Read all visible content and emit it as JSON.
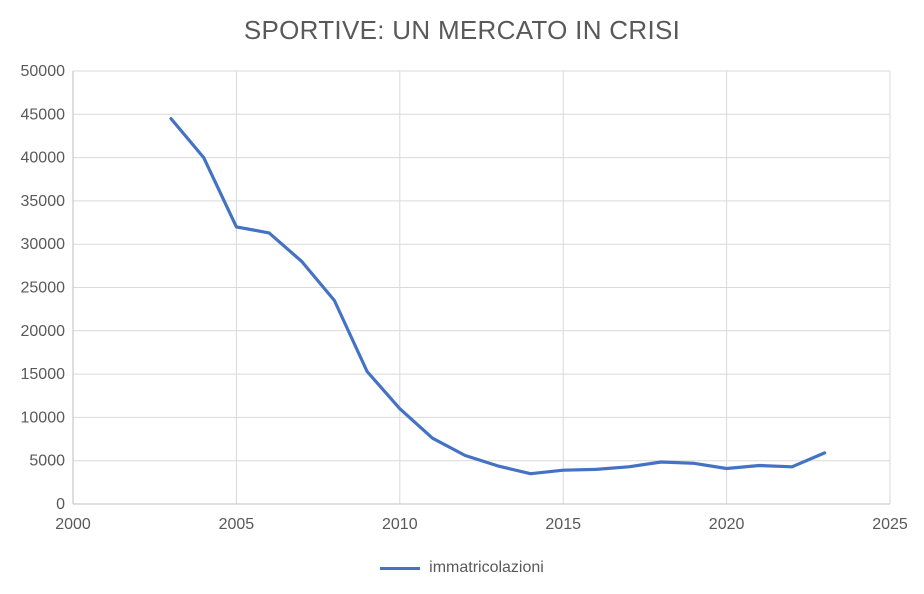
{
  "chart_data": {
    "type": "line",
    "title": "SPORTIVE: UN MERCATO IN CRISI",
    "xlim": [
      2000,
      2025
    ],
    "ylim": [
      0,
      50000
    ],
    "x_ticks": [
      2000,
      2005,
      2010,
      2015,
      2020,
      2025
    ],
    "y_ticks": [
      0,
      5000,
      10000,
      15000,
      20000,
      25000,
      30000,
      35000,
      40000,
      45000,
      50000
    ],
    "grid": true,
    "legend_position": "bottom",
    "series": [
      {
        "name": "immatricolazioni",
        "x": [
          2003,
          2004,
          2005,
          2006,
          2007,
          2008,
          2009,
          2010,
          2011,
          2012,
          2013,
          2014,
          2015,
          2016,
          2017,
          2018,
          2019,
          2020,
          2021,
          2022,
          2023
        ],
        "values": [
          44500,
          40000,
          32000,
          31300,
          28000,
          23500,
          15300,
          11000,
          7600,
          5600,
          4400,
          3500,
          3900,
          4000,
          4300,
          4850,
          4700,
          4100,
          4450,
          4300,
          5900
        ]
      }
    ],
    "colors": {
      "line": "#4472C4",
      "grid": "#D9D9D9",
      "axis": "#BFBFBF",
      "text": "#595959"
    }
  }
}
